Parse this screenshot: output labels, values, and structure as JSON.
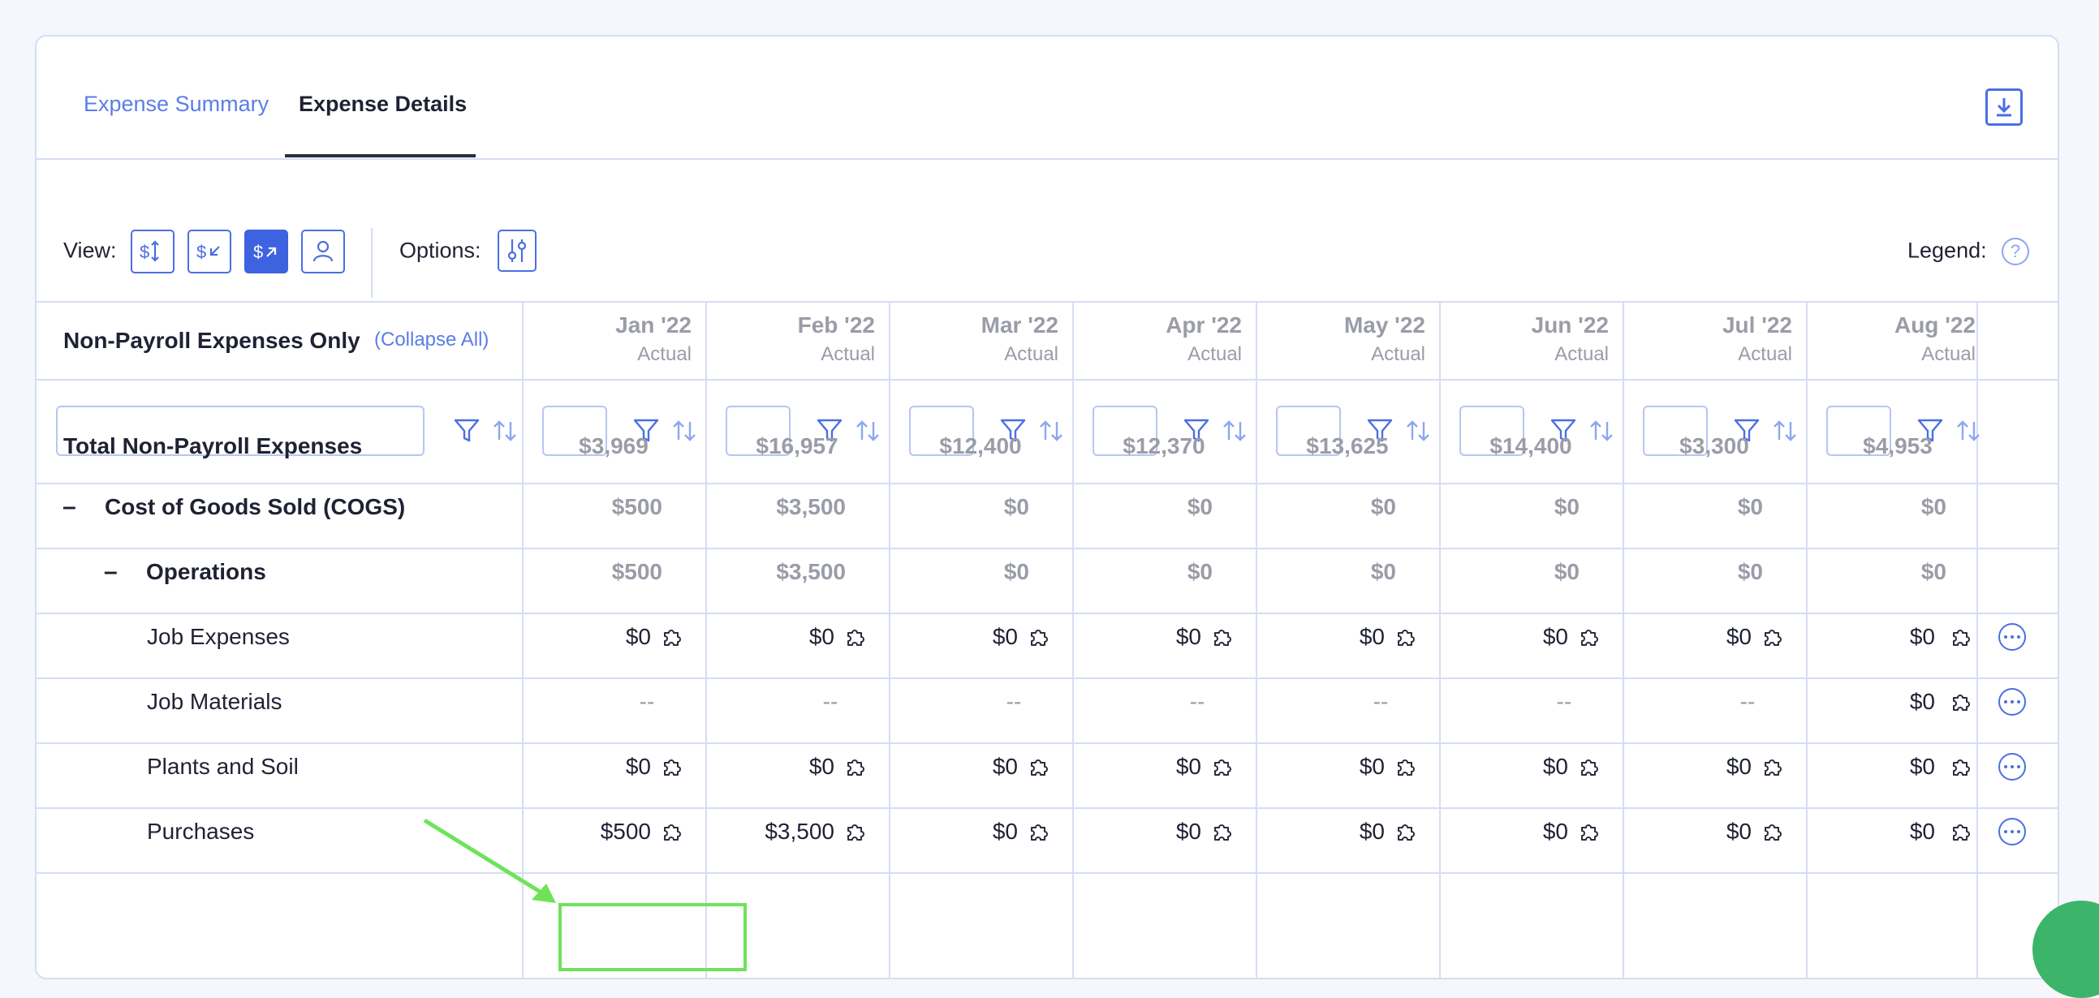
{
  "tabs": {
    "summary": "Expense Summary",
    "details": "Expense Details"
  },
  "toolbar": {
    "view_label": "View:",
    "options_label": "Options:",
    "legend_label": "Legend:",
    "help": "?"
  },
  "table": {
    "title": "Non-Payroll Expenses Only",
    "collapse_all": "(Collapse All)",
    "actual_label": "Actual",
    "months": [
      "Jan '22",
      "Feb '22",
      "Mar '22",
      "Apr '22",
      "May '22",
      "Jun '22",
      "Jul '22",
      "Aug '22"
    ],
    "rows": [
      {
        "label": "Total Non-Payroll Expenses",
        "values": [
          "$3,969",
          "$16,957",
          "$12,400",
          "$12,370",
          "$13,625",
          "$14,400",
          "$3,300",
          "$4,953"
        ]
      },
      {
        "label": "Cost of Goods Sold (COGS)",
        "toggle": "–",
        "values": [
          "$500",
          "$3,500",
          "$0",
          "$0",
          "$0",
          "$0",
          "$0",
          "$0"
        ]
      },
      {
        "label": "Operations",
        "toggle": "–",
        "values": [
          "$500",
          "$3,500",
          "$0",
          "$0",
          "$0",
          "$0",
          "$0",
          "$0"
        ]
      },
      {
        "label": "Job Expenses",
        "values": [
          "$0",
          "$0",
          "$0",
          "$0",
          "$0",
          "$0",
          "$0",
          "$0"
        ]
      },
      {
        "label": "Job Materials",
        "values": [
          "--",
          "--",
          "--",
          "--",
          "--",
          "--",
          "--",
          "$0"
        ]
      },
      {
        "label": "Plants and Soil",
        "values": [
          "$0",
          "$0",
          "$0",
          "$0",
          "$0",
          "$0",
          "$0",
          "$0"
        ]
      },
      {
        "label": "Purchases",
        "values": [
          "$500",
          "$3,500",
          "$0",
          "$0",
          "$0",
          "$0",
          "$0",
          "$0"
        ]
      }
    ]
  },
  "colors": {
    "accent": "#3d63e0",
    "link": "#5b7de8",
    "highlight": "#6ee35a",
    "border": "#d6ddf3"
  }
}
